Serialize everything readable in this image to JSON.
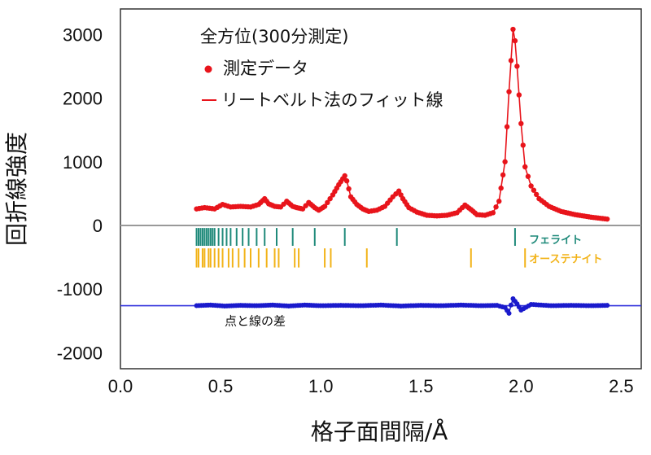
{
  "chart_data": {
    "type": "scatter",
    "title": "",
    "xlabel": "格子面間隔/Å",
    "ylabel": "回折線強度",
    "xlim": [
      0.0,
      2.6
    ],
    "ylim": [
      -2250,
      3400
    ],
    "x_ticks": [
      "0.0",
      "0.5",
      "1.0",
      "1.5",
      "2.0",
      "2.5"
    ],
    "x_tick_values": [
      0.0,
      0.5,
      1.0,
      1.5,
      2.0,
      2.5
    ],
    "y_ticks": [
      "3000",
      "2000",
      "1000",
      "0",
      "-1000",
      "-2000"
    ],
    "y_tick_values": [
      3000,
      2000,
      1000,
      0,
      -1000,
      -2000
    ],
    "grid": false,
    "legend": {
      "placement": "top-left",
      "title": "全方位(300分測定)",
      "entries": [
        "測定データ",
        "リートベルト法のフィット線"
      ]
    },
    "colors": {
      "measured": "#e8141b",
      "fit": "#e8141b",
      "difference": "#1a1acc",
      "ferrite": "#1f8a7a",
      "austenite": "#f2b318",
      "zero_line": "#999999",
      "difference_baseline": "#3333dd"
    },
    "series": [
      {
        "name": "測定データ",
        "style": "points",
        "x": [
          0.38,
          0.42,
          0.47,
          0.51,
          0.55,
          0.6,
          0.65,
          0.69,
          0.72,
          0.74,
          0.77,
          0.8,
          0.83,
          0.86,
          0.88,
          0.91,
          0.94,
          0.97,
          0.99,
          1.02,
          1.06,
          1.09,
          1.12,
          1.13,
          1.15,
          1.18,
          1.21,
          1.24,
          1.28,
          1.32,
          1.36,
          1.39,
          1.41,
          1.44,
          1.48,
          1.53,
          1.58,
          1.63,
          1.68,
          1.72,
          1.75,
          1.78,
          1.82,
          1.86,
          1.89,
          1.92,
          1.94,
          1.96,
          1.97,
          1.98,
          2.0,
          2.02,
          2.05,
          2.09,
          2.14,
          2.2,
          2.27,
          2.35,
          2.43
        ],
        "y": [
          260,
          280,
          260,
          330,
          290,
          300,
          290,
          330,
          420,
          340,
          300,
          290,
          380,
          300,
          280,
          260,
          360,
          280,
          240,
          300,
          480,
          640,
          780,
          700,
          450,
          330,
          260,
          220,
          240,
          300,
          450,
          540,
          420,
          280,
          210,
          160,
          150,
          160,
          200,
          320,
          250,
          170,
          160,
          200,
          380,
          1000,
          2100,
          3080,
          2900,
          2500,
          1600,
          920,
          620,
          420,
          300,
          220,
          170,
          130,
          100
        ]
      },
      {
        "name": "リートベルト法のフィット線",
        "style": "line",
        "x": [
          0.38,
          0.42,
          0.47,
          0.51,
          0.55,
          0.6,
          0.65,
          0.69,
          0.72,
          0.74,
          0.77,
          0.8,
          0.83,
          0.86,
          0.88,
          0.91,
          0.94,
          0.97,
          0.99,
          1.02,
          1.06,
          1.09,
          1.12,
          1.13,
          1.15,
          1.18,
          1.21,
          1.24,
          1.28,
          1.32,
          1.36,
          1.39,
          1.41,
          1.44,
          1.48,
          1.53,
          1.58,
          1.63,
          1.68,
          1.72,
          1.75,
          1.78,
          1.82,
          1.86,
          1.89,
          1.92,
          1.94,
          1.96,
          1.97,
          1.98,
          2.0,
          2.02,
          2.05,
          2.09,
          2.14,
          2.2,
          2.27,
          2.35,
          2.43
        ],
        "y": [
          260,
          280,
          260,
          330,
          290,
          300,
          290,
          330,
          420,
          340,
          300,
          290,
          380,
          300,
          280,
          260,
          360,
          280,
          240,
          300,
          480,
          640,
          780,
          700,
          450,
          330,
          260,
          220,
          240,
          300,
          450,
          540,
          420,
          280,
          210,
          160,
          150,
          160,
          200,
          320,
          250,
          170,
          160,
          200,
          380,
          1000,
          2100,
          3080,
          2900,
          2500,
          1600,
          920,
          620,
          420,
          300,
          220,
          170,
          130,
          100
        ]
      },
      {
        "name": "",
        "style": "points",
        "x": [
          0.38,
          0.45,
          0.52,
          0.6,
          0.68,
          0.76,
          0.84,
          0.92,
          1.0,
          1.1,
          1.2,
          1.3,
          1.4,
          1.5,
          1.6,
          1.7,
          1.8,
          1.88,
          1.92,
          1.94,
          1.95,
          1.96,
          1.98,
          2.0,
          2.05,
          2.15,
          2.25,
          2.35,
          2.43
        ],
        "y": [
          -1260,
          -1250,
          -1265,
          -1255,
          -1260,
          -1250,
          -1265,
          -1250,
          -1260,
          -1255,
          -1260,
          -1250,
          -1265,
          -1255,
          -1260,
          -1250,
          -1260,
          -1255,
          -1290,
          -1380,
          -1250,
          -1150,
          -1230,
          -1330,
          -1240,
          -1260,
          -1255,
          -1260,
          -1255
        ]
      }
    ],
    "baselines": [
      {
        "y": 0
      },
      {
        "y": -1260
      }
    ],
    "reflection_markers": [
      {
        "name": "フェライト",
        "x": [
          0.38,
          0.39,
          0.4,
          0.41,
          0.42,
          0.43,
          0.44,
          0.45,
          0.46,
          0.47,
          0.49,
          0.51,
          0.53,
          0.55,
          0.58,
          0.61,
          0.64,
          0.68,
          0.72,
          0.78,
          0.86,
          0.97,
          1.12,
          1.38,
          1.97
        ],
        "y_range": [
          -40,
          -320
        ]
      },
      {
        "name": "オーステナイト",
        "x": [
          0.38,
          0.39,
          0.41,
          0.42,
          0.44,
          0.45,
          0.47,
          0.49,
          0.51,
          0.54,
          0.56,
          0.59,
          0.62,
          0.65,
          0.69,
          0.73,
          0.77,
          0.79,
          0.87,
          0.89,
          1.02,
          1.05,
          1.23,
          1.75,
          2.02
        ],
        "y_range": [
          -360,
          -660
        ]
      }
    ],
    "annotations": [
      {
        "text": "フェライト",
        "x": 2.04,
        "y": -220
      },
      {
        "text": "オーステナイト",
        "x": 2.04,
        "y": -520
      },
      {
        "text": "点と線の差",
        "x": 0.52,
        "y": -1500
      }
    ]
  }
}
